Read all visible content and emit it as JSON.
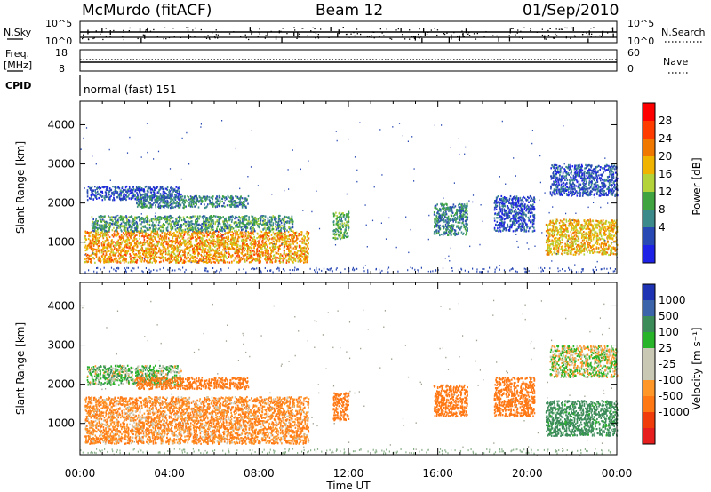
{
  "header": {
    "station": "McMurdo (fitACF)",
    "beam": "Beam 12",
    "date": "01/Sep/2010"
  },
  "top_panels": {
    "nsky_label": "N.Sky",
    "nsearch_label": "N.Search",
    "freq_label_1": "Freq.",
    "freq_label_2": "[MHz]",
    "nave_label": "Nave",
    "cpid_label": "CPID",
    "cpid_value": "normal (fast) 151",
    "noise_left_ticks": [
      "10^5",
      "10^0"
    ],
    "noise_right_ticks": [
      "10^5",
      "10^0"
    ],
    "freq_ticks": [
      "18",
      "8"
    ],
    "nave_ticks": [
      "60",
      "0"
    ]
  },
  "colors": {
    "power_scale": [
      "#1e22e6",
      "#2848b4",
      "#3d8a8a",
      "#3fa43f",
      "#b4d23a",
      "#f0b400",
      "#f07800",
      "#ff3c00",
      "#ff0000"
    ],
    "velocity_scale": [
      "#e61e1e",
      "#f03c0a",
      "#ff7814",
      "#ff9628",
      "#c8c8b4",
      "#c8c8b4",
      "#28b428",
      "#3c8c5a",
      "#3c64aa",
      "#1e32b4"
    ]
  },
  "chart_data": [
    {
      "type": "heatmap",
      "title": "Power",
      "xlabel": "",
      "ylabel": "Slant Range [km]",
      "x_ticks": [
        "00:00",
        "04:00",
        "08:00",
        "12:00",
        "16:00",
        "20:00",
        "00:00"
      ],
      "y_ticks": [
        "1000",
        "2000",
        "3000",
        "4000"
      ],
      "ylim": [
        200,
        4600
      ],
      "colorbar_label": "Power [dB]",
      "colorbar_ticks": [
        "4",
        "8",
        "12",
        "16",
        "20",
        "24",
        "28"
      ],
      "scatter_regions": [
        {
          "t": [
            0.2,
            10.2
          ],
          "r": [
            500,
            1300
          ],
          "v": 24
        },
        {
          "t": [
            0.5,
            9.5
          ],
          "r": [
            1300,
            1700
          ],
          "v": 12
        },
        {
          "t": [
            0.3,
            4.5
          ],
          "r": [
            2100,
            2450
          ],
          "v": 6
        },
        {
          "t": [
            2.5,
            7.5
          ],
          "r": [
            1900,
            2200
          ],
          "v": 10
        },
        {
          "t": [
            11.3,
            12.0
          ],
          "r": [
            1100,
            1800
          ],
          "v": 14
        },
        {
          "t": [
            15.8,
            17.3
          ],
          "r": [
            1200,
            2000
          ],
          "v": 10
        },
        {
          "t": [
            18.5,
            20.3
          ],
          "r": [
            1300,
            2200
          ],
          "v": 6
        },
        {
          "t": [
            20.8,
            24.0
          ],
          "r": [
            700,
            1600
          ],
          "v": 22
        },
        {
          "t": [
            21.0,
            24.0
          ],
          "r": [
            2200,
            3000
          ],
          "v": 6
        }
      ]
    },
    {
      "type": "heatmap",
      "title": "Velocity",
      "xlabel": "Time UT",
      "ylabel": "Slant Range [km]",
      "x_ticks": [
        "00:00",
        "04:00",
        "08:00",
        "12:00",
        "16:00",
        "20:00",
        "00:00"
      ],
      "y_ticks": [
        "1000",
        "2000",
        "3000",
        "4000"
      ],
      "ylim": [
        200,
        4600
      ],
      "colorbar_label": "Velocity [m s⁻¹]",
      "colorbar_ticks": [
        "1000",
        "500",
        "100",
        "25",
        "-25",
        "-100",
        "-500",
        "-1000"
      ],
      "scatter_regions": [
        {
          "t": [
            0.2,
            10.2
          ],
          "r": [
            500,
            1700
          ],
          "v": -100
        },
        {
          "t": [
            0.3,
            4.5
          ],
          "r": [
            2000,
            2500
          ],
          "v": 50
        },
        {
          "t": [
            2.5,
            7.5
          ],
          "r": [
            1900,
            2200
          ],
          "v": -300
        },
        {
          "t": [
            11.3,
            12.0
          ],
          "r": [
            1100,
            1800
          ],
          "v": -300
        },
        {
          "t": [
            15.8,
            17.3
          ],
          "r": [
            1200,
            2000
          ],
          "v": -300
        },
        {
          "t": [
            18.5,
            20.3
          ],
          "r": [
            1200,
            2200
          ],
          "v": -300
        },
        {
          "t": [
            20.8,
            24.0
          ],
          "r": [
            700,
            1600
          ],
          "v": 200
        },
        {
          "t": [
            21.0,
            24.0
          ],
          "r": [
            2200,
            3000
          ],
          "v": 0
        }
      ]
    }
  ]
}
